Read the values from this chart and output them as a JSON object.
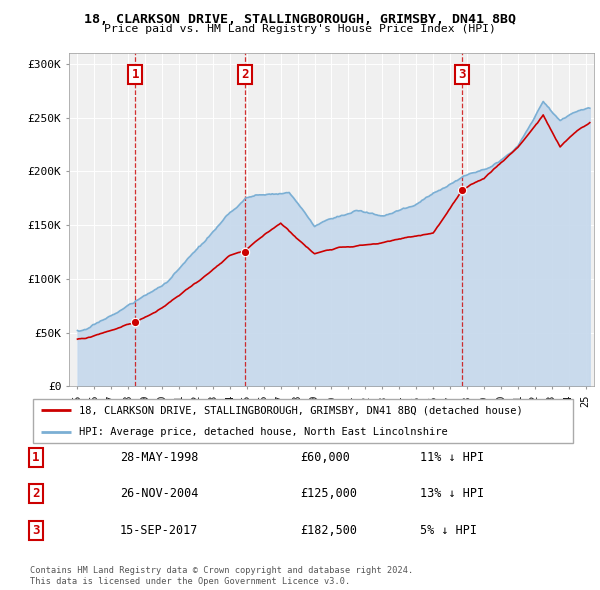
{
  "title1": "18, CLARKSON DRIVE, STALLINGBOROUGH, GRIMSBY, DN41 8BQ",
  "title2": "Price paid vs. HM Land Registry's House Price Index (HPI)",
  "sale_dates_num": [
    1998.41,
    2004.9,
    2017.71
  ],
  "sale_prices": [
    60000,
    125000,
    182500
  ],
  "sale_labels": [
    "1",
    "2",
    "3"
  ],
  "sale_color": "#cc0000",
  "hpi_color": "#7bafd4",
  "hpi_fill_color": "#c5d8ec",
  "legend_line1": "18, CLARKSON DRIVE, STALLINGBOROUGH, GRIMSBY, DN41 8BQ (detached house)",
  "legend_line2": "HPI: Average price, detached house, North East Lincolnshire",
  "table_rows": [
    [
      "1",
      "28-MAY-1998",
      "£60,000",
      "11% ↓ HPI"
    ],
    [
      "2",
      "26-NOV-2004",
      "£125,000",
      "13% ↓ HPI"
    ],
    [
      "3",
      "15-SEP-2017",
      "£182,500",
      "5% ↓ HPI"
    ]
  ],
  "footnote1": "Contains HM Land Registry data © Crown copyright and database right 2024.",
  "footnote2": "This data is licensed under the Open Government Licence v3.0.",
  "ylim": [
    0,
    310000
  ],
  "yticks": [
    0,
    50000,
    100000,
    150000,
    200000,
    250000,
    300000
  ],
  "ytick_labels": [
    "£0",
    "£50K",
    "£100K",
    "£150K",
    "£200K",
    "£250K",
    "£300K"
  ],
  "xmin": 1994.5,
  "xmax": 2025.5,
  "bg_color": "#f0f0f0"
}
